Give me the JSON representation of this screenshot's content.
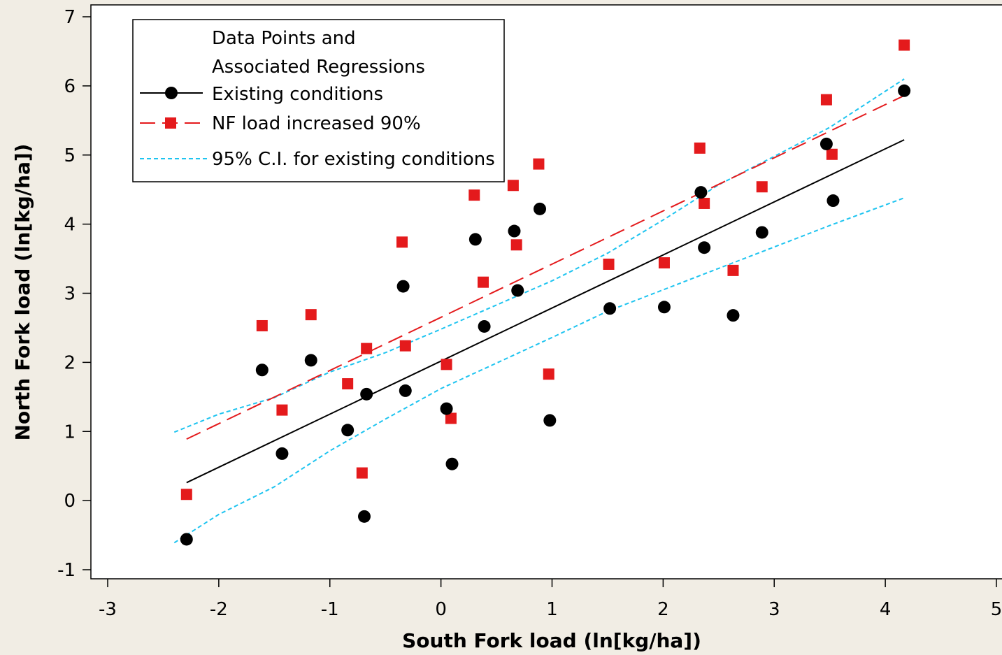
{
  "chart_data": {
    "type": "scatter",
    "xlabel": "South Fork load (ln[kg/ha])",
    "ylabel": "North Fork load (ln[kg/ha])",
    "xlim": [
      -3,
      5
    ],
    "ylim": [
      -1,
      7
    ],
    "xticks": [
      "-3",
      "-2",
      "-1",
      "0",
      "1",
      "2",
      "3",
      "4",
      "5"
    ],
    "yticks": [
      "-1",
      "0",
      "1",
      "2",
      "3",
      "4",
      "5",
      "6",
      "7"
    ],
    "grid": false,
    "legend": {
      "placement": "top-left",
      "title_lines": [
        "Data Points and",
        "Associated Regressions"
      ],
      "entries": [
        {
          "label": "Existing conditions",
          "color": "#000000",
          "marker": "circle",
          "line": "solid"
        },
        {
          "label": "NF load increased 90%",
          "color": "#e41a1c",
          "marker": "square",
          "line": "dashed"
        },
        {
          "label": "95% C.I. for existing conditions",
          "color": "#1ec4f0",
          "marker": "none",
          "line": "dotted"
        }
      ]
    },
    "series": [
      {
        "name": "Existing conditions",
        "color": "#000000",
        "marker": "circle",
        "points": [
          [
            -2.29,
            -0.56
          ],
          [
            -1.61,
            1.89
          ],
          [
            -1.43,
            0.68
          ],
          [
            -1.17,
            2.03
          ],
          [
            -0.84,
            1.02
          ],
          [
            -0.69,
            -0.23
          ],
          [
            -0.67,
            1.54
          ],
          [
            -0.34,
            3.1
          ],
          [
            -0.32,
            1.59
          ],
          [
            0.05,
            1.33
          ],
          [
            0.1,
            0.53
          ],
          [
            0.31,
            3.78
          ],
          [
            0.39,
            2.52
          ],
          [
            0.66,
            3.9
          ],
          [
            0.69,
            3.04
          ],
          [
            0.89,
            4.22
          ],
          [
            0.98,
            1.16
          ],
          [
            1.52,
            2.78
          ],
          [
            2.01,
            2.8
          ],
          [
            2.34,
            4.46
          ],
          [
            2.37,
            3.66
          ],
          [
            2.63,
            2.68
          ],
          [
            2.89,
            3.88
          ],
          [
            3.47,
            5.16
          ],
          [
            3.53,
            4.34
          ],
          [
            4.17,
            5.93
          ]
        ],
        "regression": [
          [
            -2.29,
            0.26
          ],
          [
            4.17,
            5.22
          ]
        ]
      },
      {
        "name": "NF load increased 90%",
        "color": "#e41a1c",
        "marker": "square",
        "points": [
          [
            -2.29,
            0.09
          ],
          [
            -1.61,
            2.53
          ],
          [
            -1.43,
            1.31
          ],
          [
            -1.17,
            2.69
          ],
          [
            -0.84,
            1.69
          ],
          [
            -0.71,
            0.4
          ],
          [
            -0.67,
            2.2
          ],
          [
            -0.35,
            3.74
          ],
          [
            -0.32,
            2.24
          ],
          [
            0.05,
            1.97
          ],
          [
            0.09,
            1.19
          ],
          [
            0.3,
            4.42
          ],
          [
            0.38,
            3.16
          ],
          [
            0.65,
            4.56
          ],
          [
            0.68,
            3.7
          ],
          [
            0.88,
            4.87
          ],
          [
            0.97,
            1.83
          ],
          [
            1.51,
            3.42
          ],
          [
            2.01,
            3.44
          ],
          [
            2.33,
            5.1
          ],
          [
            2.37,
            4.3
          ],
          [
            2.63,
            3.33
          ],
          [
            2.89,
            4.54
          ],
          [
            3.47,
            5.8
          ],
          [
            3.52,
            5.01
          ],
          [
            4.17,
            6.59
          ]
        ],
        "regression": [
          [
            -2.29,
            0.89
          ],
          [
            4.17,
            5.86
          ]
        ]
      },
      {
        "name": "95% C.I. for existing conditions",
        "color": "#1ec4f0",
        "marker": "none",
        "upper": [
          [
            -2.4,
            0.99
          ],
          [
            -2.0,
            1.25
          ],
          [
            -1.5,
            1.49
          ],
          [
            -1.0,
            1.86
          ],
          [
            -0.5,
            2.14
          ],
          [
            0.0,
            2.48
          ],
          [
            0.5,
            2.83
          ],
          [
            1.0,
            3.18
          ],
          [
            1.5,
            3.58
          ],
          [
            2.0,
            4.06
          ],
          [
            2.5,
            4.57
          ],
          [
            3.0,
            4.98
          ],
          [
            3.5,
            5.4
          ],
          [
            4.17,
            6.1
          ]
        ],
        "lower": [
          [
            -2.4,
            -0.61
          ],
          [
            -2.0,
            -0.2
          ],
          [
            -1.5,
            0.2
          ],
          [
            -1.0,
            0.72
          ],
          [
            -0.5,
            1.18
          ],
          [
            0.0,
            1.62
          ],
          [
            0.5,
            1.99
          ],
          [
            1.0,
            2.36
          ],
          [
            1.5,
            2.74
          ],
          [
            2.0,
            3.05
          ],
          [
            2.5,
            3.36
          ],
          [
            3.0,
            3.67
          ],
          [
            3.5,
            3.98
          ],
          [
            4.17,
            4.38
          ]
        ]
      }
    ]
  }
}
